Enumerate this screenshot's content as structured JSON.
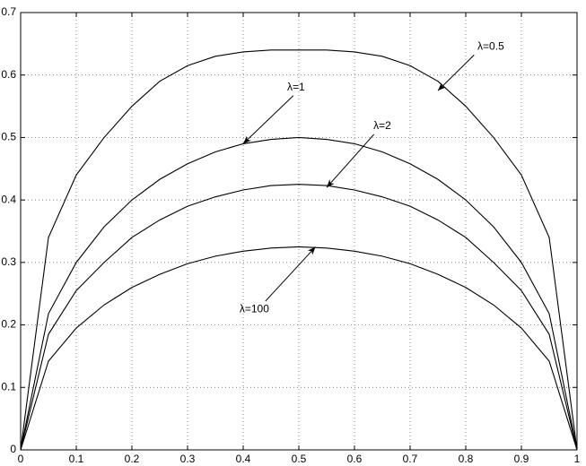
{
  "chart_data": {
    "type": "line",
    "x": [
      0,
      0.05,
      0.1,
      0.15,
      0.2,
      0.25,
      0.3,
      0.35,
      0.4,
      0.45,
      0.5,
      0.55,
      0.6,
      0.65,
      0.7,
      0.75,
      0.8,
      0.85,
      0.9,
      0.95,
      1
    ],
    "series": [
      {
        "name": "λ=0.5",
        "color": "#000000",
        "values": [
          0,
          0.34,
          0.44,
          0.5,
          0.55,
          0.59,
          0.615,
          0.63,
          0.637,
          0.64,
          0.64,
          0.64,
          0.637,
          0.63,
          0.615,
          0.59,
          0.55,
          0.5,
          0.44,
          0.34,
          0
        ]
      },
      {
        "name": "λ=1",
        "color": "#000000",
        "values": [
          0,
          0.218,
          0.3,
          0.357,
          0.4,
          0.433,
          0.458,
          0.477,
          0.49,
          0.497,
          0.5,
          0.497,
          0.49,
          0.477,
          0.458,
          0.433,
          0.4,
          0.357,
          0.3,
          0.218,
          0
        ]
      },
      {
        "name": "λ=2",
        "color": "#000000",
        "values": [
          0,
          0.185,
          0.255,
          0.3,
          0.34,
          0.368,
          0.39,
          0.405,
          0.416,
          0.423,
          0.425,
          0.423,
          0.416,
          0.405,
          0.39,
          0.368,
          0.34,
          0.3,
          0.255,
          0.185,
          0
        ]
      },
      {
        "name": "λ=100",
        "color": "#000000",
        "values": [
          0,
          0.142,
          0.195,
          0.232,
          0.26,
          0.281,
          0.298,
          0.31,
          0.318,
          0.323,
          0.325,
          0.323,
          0.318,
          0.31,
          0.298,
          0.281,
          0.26,
          0.232,
          0.195,
          0.142,
          0
        ]
      }
    ],
    "xlim": [
      0,
      1
    ],
    "xticks": [
      0,
      0.1,
      0.2,
      0.3,
      0.4,
      0.5,
      0.6,
      0.7,
      0.8,
      0.9,
      1
    ],
    "ylim": [
      0,
      0.7
    ],
    "yticks": [
      0,
      0.1,
      0.2,
      0.3,
      0.4,
      0.5,
      0.6,
      0.7
    ],
    "grid": true
  }
}
